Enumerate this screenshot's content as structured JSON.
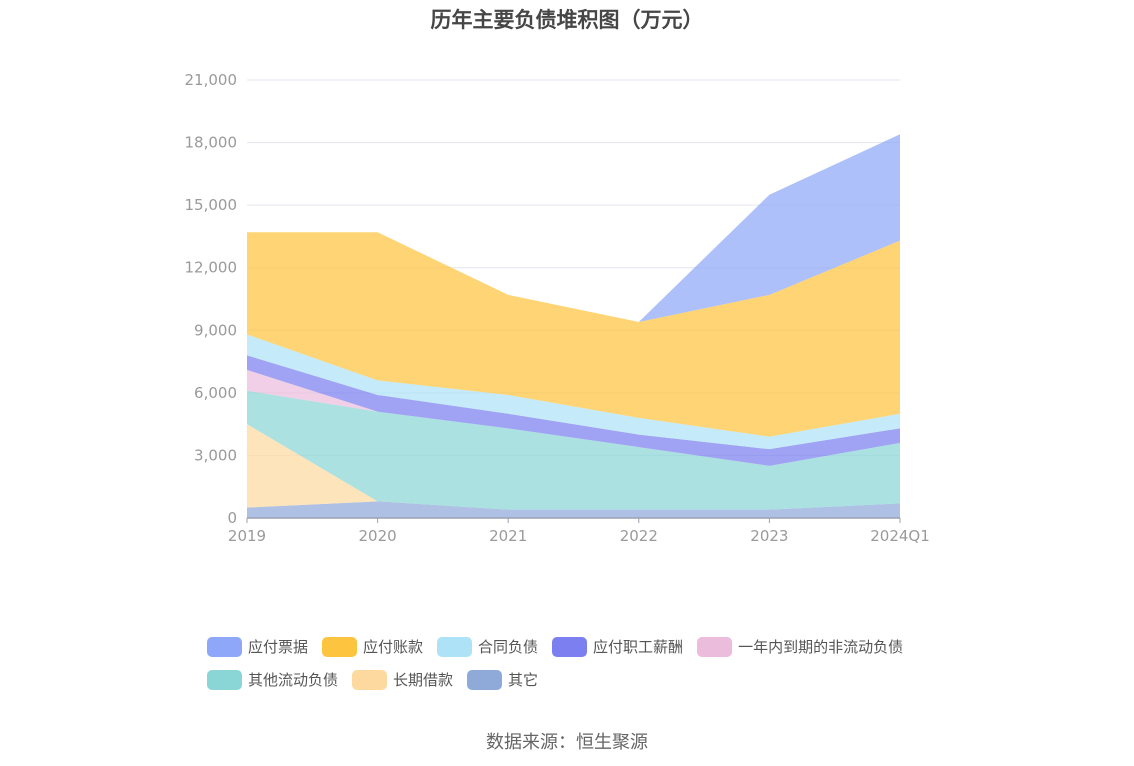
{
  "title": "历年主要负债堆积图（万元）",
  "source": "数据来源：恒生聚源",
  "chart_data": {
    "type": "area",
    "stacked": true,
    "categories": [
      "2019",
      "2020",
      "2021",
      "2022",
      "2023",
      "2024Q1"
    ],
    "ylim": [
      0,
      21000
    ],
    "yticks": [
      "0",
      "3,000",
      "6,000",
      "9,000",
      "12,000",
      "15,000",
      "18,000",
      "21,000"
    ],
    "ytick_values": [
      0,
      3000,
      6000,
      9000,
      12000,
      15000,
      18000,
      21000
    ],
    "grid": true,
    "legend_position": "bottom",
    "series": [
      {
        "name": "其它",
        "color": "#8fa9d9",
        "values": [
          500,
          800,
          400,
          400,
          400,
          700
        ]
      },
      {
        "name": "长期借款",
        "color": "#fdd9a0",
        "values": [
          4000,
          0,
          0,
          0,
          0,
          0
        ]
      },
      {
        "name": "其他流动负债",
        "color": "#8ad6d6",
        "values": [
          1600,
          4300,
          3900,
          3000,
          2100,
          2900
        ]
      },
      {
        "name": "一年内到期的非流动负债",
        "color": "#ebbcdc",
        "values": [
          1000,
          0,
          0,
          0,
          0,
          0
        ]
      },
      {
        "name": "应付职工薪酬",
        "color": "#7b7ff0",
        "values": [
          700,
          800,
          700,
          600,
          800,
          700
        ]
      },
      {
        "name": "合同负债",
        "color": "#aee2f7",
        "values": [
          1000,
          700,
          900,
          800,
          600,
          700
        ]
      },
      {
        "name": "应付账款",
        "color": "#fdc43f",
        "values": [
          4900,
          7100,
          4800,
          4600,
          6800,
          8300
        ]
      },
      {
        "name": "应付票据",
        "color": "#8ea7f8",
        "values": [
          0,
          0,
          0,
          0,
          4800,
          5100
        ]
      }
    ]
  },
  "legend_rows": [
    [
      {
        "label": "应付票据",
        "color": "#8ea7f8"
      },
      {
        "label": "应付账款",
        "color": "#fdc43f"
      },
      {
        "label": "合同负债",
        "color": "#aee2f7"
      },
      {
        "label": "应付职工薪酬",
        "color": "#7b7ff0"
      },
      {
        "label": "一年内到期的非流动负债",
        "color": "#ebbcdc"
      }
    ],
    [
      {
        "label": "其他流动负债",
        "color": "#8ad6d6"
      },
      {
        "label": "长期借款",
        "color": "#fdd9a0"
      },
      {
        "label": "其它",
        "color": "#8fa9d9"
      }
    ]
  ]
}
